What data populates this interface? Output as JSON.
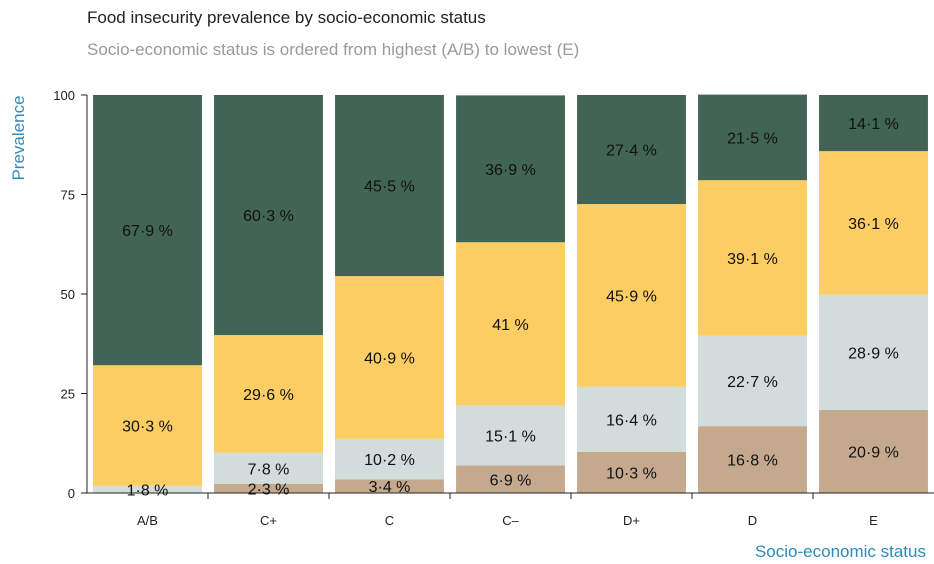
{
  "chart_data": {
    "type": "bar",
    "stacked": true,
    "title": "Food insecurity prevalence by socio-economic status",
    "subtitle": "Socio-economic status is ordered from highest (A/B) to lowest (E)",
    "xlabel": "Socio-economic status",
    "ylabel": "Prevalence",
    "ylim": [
      0,
      100
    ],
    "yticks": [
      0,
      25,
      50,
      75,
      100
    ],
    "categories": [
      "A/B",
      "C+",
      "C",
      "C–",
      "D+",
      "D",
      "E"
    ],
    "series": [
      {
        "color": "#c4a98e",
        "values": [
          0.0,
          2.3,
          3.4,
          6.9,
          10.3,
          16.8,
          20.9
        ],
        "labels": [
          "",
          "2·3 %",
          "3·4 %",
          "6·9 %",
          "10·3 %",
          "16·8 %",
          "20·9 %"
        ]
      },
      {
        "color": "#d1dcdb",
        "values": [
          1.8,
          7.8,
          10.2,
          15.1,
          16.4,
          22.7,
          28.9
        ],
        "labels": [
          "1·8 %",
          "7·8 %",
          "10·2 %",
          "15·1 %",
          "16·4 %",
          "22·7 %",
          "28·9 %"
        ]
      },
      {
        "color": "#fbcd63",
        "values": [
          30.3,
          29.6,
          40.9,
          41.0,
          45.9,
          39.1,
          36.1
        ],
        "labels": [
          "30·3 %",
          "29·6 %",
          "40·9 %",
          "41 %",
          "45·9 %",
          "39·1 %",
          "36·1 %"
        ]
      },
      {
        "color": "#416455",
        "values": [
          67.9,
          60.3,
          45.5,
          36.9,
          27.4,
          21.5,
          14.1
        ],
        "labels": [
          "67·9 %",
          "60·3 %",
          "45·5 %",
          "36·9 %",
          "27·4 %",
          "21·5 %",
          "14·1 %"
        ]
      }
    ],
    "grid": false,
    "legend": "none"
  }
}
